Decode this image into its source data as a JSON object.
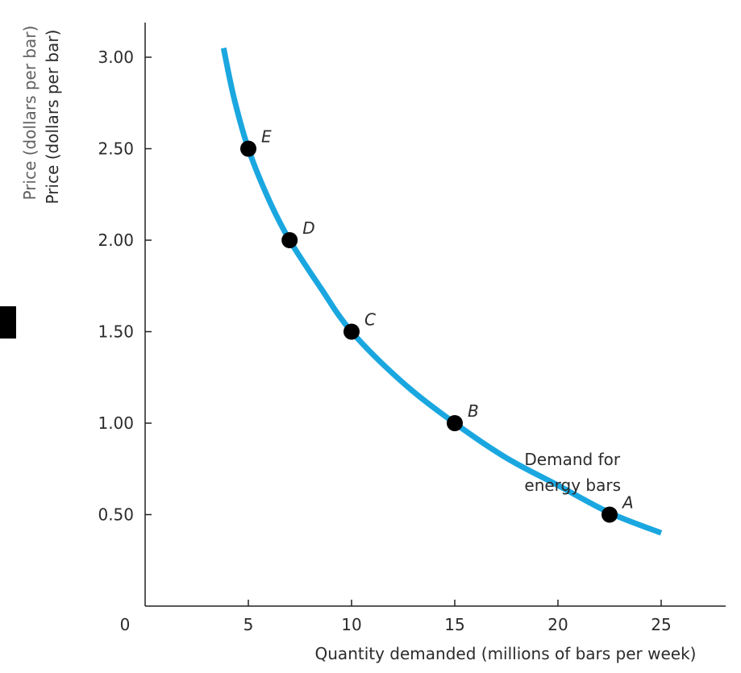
{
  "chart_data": {
    "type": "line",
    "title": "",
    "xlabel": "Quantity demanded (millions of bars per week)",
    "ylabel": "Price (dollars per bar)",
    "ylabel_ghost": "Price (dollars per bar)",
    "xlim": [
      0,
      28
    ],
    "ylim": [
      0,
      3.3
    ],
    "x_ticks": [
      0,
      5,
      10,
      15,
      20,
      25
    ],
    "x_tick_labels": [
      "0",
      "5",
      "10",
      "15",
      "20",
      "25"
    ],
    "y_ticks": [
      0.5,
      1.0,
      1.5,
      2.0,
      2.5,
      3.0
    ],
    "y_tick_labels": [
      "0.50",
      "1.00",
      "1.50",
      "2.00",
      "2.50",
      "3.00"
    ],
    "grid": false,
    "curve_color": "#1aa7e0",
    "point_color": "#000000",
    "series": [
      {
        "name": "Demand for energy bars",
        "curve": {
          "x": [
            3.8,
            4.3,
            5,
            6,
            7,
            8.5,
            10,
            12.5,
            15,
            17.5,
            20,
            22.5,
            25
          ],
          "y": [
            3.05,
            2.78,
            2.5,
            2.22,
            2.0,
            1.74,
            1.5,
            1.22,
            1.0,
            0.81,
            0.66,
            0.51,
            0.4
          ]
        },
        "points": [
          {
            "label": "A",
            "x": 22.5,
            "y": 0.5
          },
          {
            "label": "B",
            "x": 15,
            "y": 1.0
          },
          {
            "label": "C",
            "x": 10,
            "y": 1.5
          },
          {
            "label": "D",
            "x": 7,
            "y": 2.0
          },
          {
            "label": "E",
            "x": 5,
            "y": 2.5
          }
        ]
      }
    ],
    "annotation": {
      "lines": [
        "Demand for",
        "energy bars"
      ],
      "anchor": [
        19,
        0.88
      ]
    }
  }
}
